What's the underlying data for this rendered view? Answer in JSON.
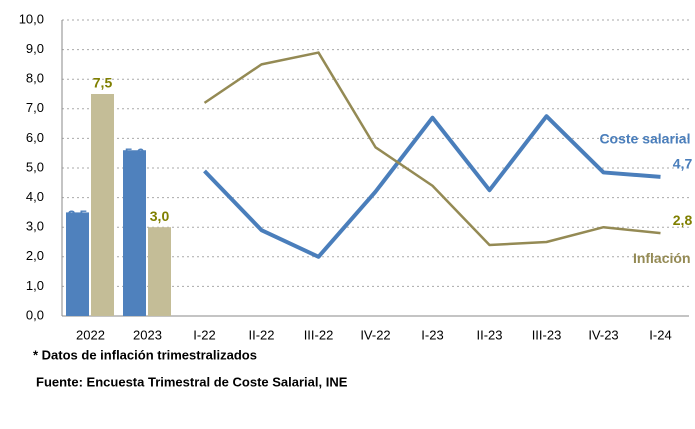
{
  "chart_data": [
    {
      "type": "bar",
      "categories": [
        "2022",
        "2023"
      ],
      "series": [
        {
          "name": "Coste salarial",
          "color": "#4f81bd",
          "values": [
            3.5,
            5.6
          ],
          "value_labels": [
            "3,5",
            "5,6"
          ]
        },
        {
          "name": "Inflación",
          "color": "#c4bd97",
          "values": [
            7.5,
            3.0
          ],
          "value_labels": [
            "7,5",
            "3,0"
          ]
        }
      ],
      "ylim": [
        0,
        10
      ],
      "yticks": [
        {
          "value": 0,
          "label": "0,0"
        },
        {
          "value": 1,
          "label": "1,0"
        },
        {
          "value": 2,
          "label": "2,0"
        },
        {
          "value": 3,
          "label": "3,0"
        },
        {
          "value": 4,
          "label": "4,0"
        },
        {
          "value": 5,
          "label": "5,0"
        },
        {
          "value": 6,
          "label": "6,0"
        },
        {
          "value": 7,
          "label": "7,0"
        },
        {
          "value": 8,
          "label": "8,0"
        },
        {
          "value": 9,
          "label": "9,0"
        },
        {
          "value": 10,
          "label": "10,0"
        }
      ],
      "grid": true
    },
    {
      "type": "line",
      "categories": [
        "I-22",
        "II-22",
        "III-22",
        "IV-22",
        "I-23",
        "II-23",
        "III-23",
        "IV-23",
        "I-24"
      ],
      "series": [
        {
          "name": "Coste salarial",
          "color": "#4a7ebb",
          "values": [
            4.9,
            2.9,
            2.0,
            4.2,
            6.7,
            4.25,
            6.75,
            4.85,
            4.7
          ],
          "value_labels": [
            null,
            null,
            null,
            null,
            null,
            null,
            null,
            null,
            "4,7"
          ]
        },
        {
          "name": "Inflación",
          "color": "#948a54",
          "values": [
            7.2,
            8.5,
            8.9,
            5.7,
            4.4,
            2.4,
            2.5,
            3.0,
            2.8
          ],
          "value_labels": [
            null,
            null,
            null,
            null,
            null,
            null,
            null,
            null,
            "2,8"
          ]
        }
      ],
      "ylim": [
        0,
        10
      ]
    }
  ],
  "notes": [
    "* Datos de inflación trimestralizados",
    "Fuente: Encuesta Trimestral de Coste Salarial, INE"
  ]
}
